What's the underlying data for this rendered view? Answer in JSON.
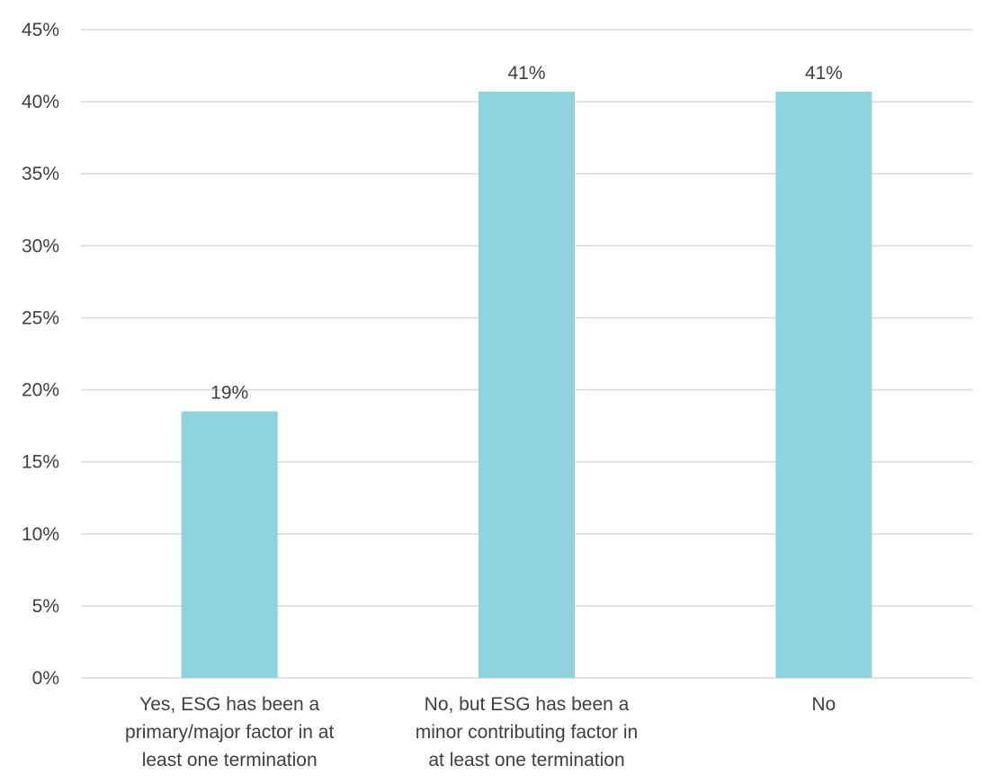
{
  "chart_data": {
    "type": "bar",
    "categories": [
      [
        "Yes, ESG has been a",
        "primary/major factor in at",
        "least one termination"
      ],
      [
        "No, but ESG has been a",
        "minor contributing factor in",
        "at least one termination"
      ],
      [
        "No"
      ]
    ],
    "values": [
      18.5,
      40.7,
      40.7
    ],
    "data_labels": [
      "19%",
      "41%",
      "41%"
    ],
    "y_ticks": [
      "0%",
      "5%",
      "10%",
      "15%",
      "20%",
      "25%",
      "30%",
      "35%",
      "40%",
      "45%"
    ],
    "ylim": [
      0,
      45
    ],
    "y_step": 5,
    "grid": true,
    "bar_color": "#8fd3df",
    "title": "",
    "xlabel": "",
    "ylabel": ""
  }
}
